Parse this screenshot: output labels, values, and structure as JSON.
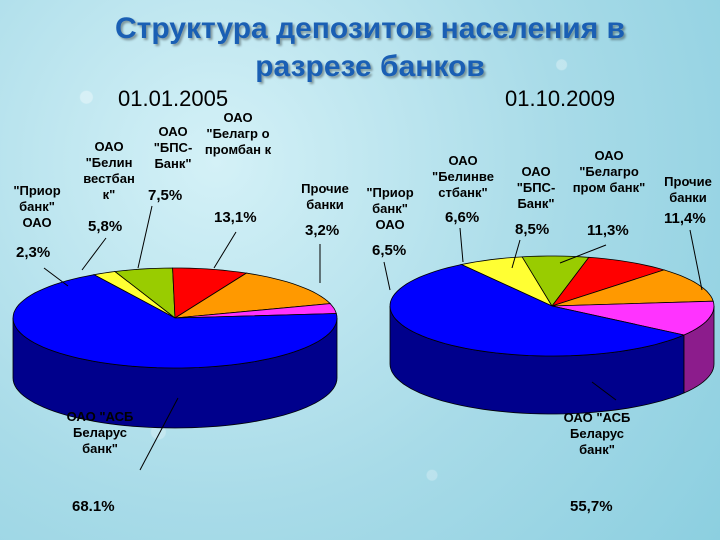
{
  "title": "Структура депозитов населения в разрезе банков",
  "charts": [
    {
      "date": "01.01.2005",
      "labels": [
        {
          "name": "\"Приор банк\" ОАО",
          "pct": "2,3%"
        },
        {
          "name": "ОАО \"Белин вестбан к\"",
          "pct": "5,8%"
        },
        {
          "name": "ОАО \"БПС-Банк\"",
          "pct": "7,5%"
        },
        {
          "name": "ОАО \"Белагр о промбан к",
          "pct": "13,1%"
        },
        {
          "name": "Прочие банки",
          "pct": "3,2%"
        },
        {
          "name": "ОАО \"АСБ Беларус банк\"",
          "pct": "68.1%"
        }
      ]
    },
    {
      "date": "01.10.2009",
      "labels": [
        {
          "name": "\"Приор банк\" ОАО",
          "pct": "6,5%"
        },
        {
          "name": "ОАО \"Белинве стбанк\"",
          "pct": "6,6%"
        },
        {
          "name": "ОАО \"БПС-Банк\"",
          "pct": "8,5%"
        },
        {
          "name": "ОАО \"Белагро пром банк\"",
          "pct": "11,3%"
        },
        {
          "name": "Прочие банки",
          "pct": "11,4%"
        },
        {
          "name": "ОАО \"АСБ Беларус банк\"",
          "pct": "55,7%"
        }
      ]
    }
  ],
  "chart_data": [
    {
      "type": "pie",
      "title": "01.01.2005",
      "categories": [
        "\"Приор банк\" ОАО",
        "ОАО \"Белинвестбанк\"",
        "ОАО \"БПС-Банк\"",
        "ОАО \"Белагропромбанк\"",
        "Прочие банки",
        "ОАО \"АСБ Беларусбанк\""
      ],
      "values": [
        2.3,
        5.8,
        7.5,
        13.1,
        3.2,
        68.1
      ],
      "colors": [
        "#ffff33",
        "#99cc00",
        "#ff0000",
        "#ff9900",
        "#ff33ff",
        "#0000ff"
      ]
    },
    {
      "type": "pie",
      "title": "01.10.2009",
      "categories": [
        "\"Приор банк\" ОАО",
        "ОАО \"Белинвестбанк\"",
        "ОАО \"БПС-Банк\"",
        "ОАО \"Белагропромбанк\"",
        "Прочие банки",
        "ОАО \"АСБ Беларусбанк\""
      ],
      "values": [
        6.5,
        6.6,
        8.5,
        11.3,
        11.4,
        55.7
      ],
      "colors": [
        "#ffff33",
        "#99cc00",
        "#ff0000",
        "#ff9900",
        "#ff33ff",
        "#0000ff"
      ]
    }
  ]
}
